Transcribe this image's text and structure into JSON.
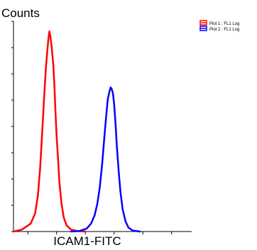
{
  "chart_data": {
    "type": "line",
    "title": "",
    "ylabel": "Counts",
    "xlabel": "ICAM1-FITC",
    "x_scale": "log",
    "grid": false,
    "legend_position": "top-right",
    "series": [
      {
        "name": "Plot 1 : FL1 Log",
        "color": "#ff0000",
        "points": [
          [
            0.0,
            0.0
          ],
          [
            0.3,
            1.0
          ],
          [
            0.6,
            4.0
          ],
          [
            0.75,
            9.0
          ],
          [
            0.85,
            18.0
          ],
          [
            0.93,
            32.0
          ],
          [
            1.0,
            50.0
          ],
          [
            1.07,
            68.0
          ],
          [
            1.13,
            82.0
          ],
          [
            1.18,
            91.0
          ],
          [
            1.22,
            97.0
          ],
          [
            1.25,
            100.0
          ],
          [
            1.28,
            98.0
          ],
          [
            1.33,
            92.0
          ],
          [
            1.38,
            84.0
          ],
          [
            1.42,
            74.0
          ],
          [
            1.46,
            60.0
          ],
          [
            1.5,
            48.0
          ],
          [
            1.55,
            36.0
          ],
          [
            1.6,
            24.0
          ],
          [
            1.67,
            14.0
          ],
          [
            1.75,
            7.0
          ],
          [
            1.85,
            3.0
          ],
          [
            2.0,
            1.0
          ],
          [
            2.2,
            0.3
          ],
          [
            2.5,
            0.0
          ]
        ]
      },
      {
        "name": "Plot 2 : FL1 Log",
        "color": "#0000ff",
        "points": [
          [
            2.0,
            0.0
          ],
          [
            2.3,
            0.3
          ],
          [
            2.55,
            1.5
          ],
          [
            2.7,
            4.0
          ],
          [
            2.82,
            8.0
          ],
          [
            2.92,
            14.0
          ],
          [
            3.0,
            22.0
          ],
          [
            3.08,
            33.0
          ],
          [
            3.15,
            45.0
          ],
          [
            3.22,
            57.0
          ],
          [
            3.28,
            66.0
          ],
          [
            3.34,
            70.0
          ],
          [
            3.38,
            72.0
          ],
          [
            3.42,
            71.0
          ],
          [
            3.46,
            69.0
          ],
          [
            3.5,
            64.0
          ],
          [
            3.55,
            54.0
          ],
          [
            3.6,
            42.0
          ],
          [
            3.66,
            30.0
          ],
          [
            3.72,
            20.0
          ],
          [
            3.8,
            11.0
          ],
          [
            3.9,
            5.0
          ],
          [
            4.0,
            2.0
          ],
          [
            4.15,
            0.5
          ],
          [
            4.4,
            0.0
          ]
        ]
      }
    ],
    "xlim": [
      0,
      6.2
    ],
    "ylim": [
      0,
      105
    ]
  }
}
